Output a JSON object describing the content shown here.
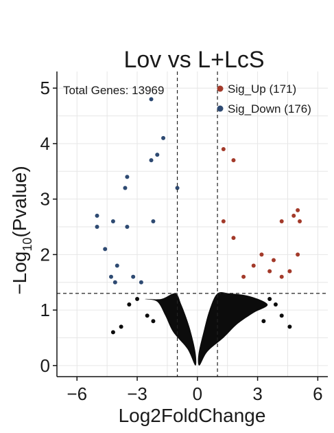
{
  "chart_data": {
    "type": "scatter",
    "title": "Lov vs L+LcS",
    "xlabel": "Log2FoldChange",
    "ylabel_prefix": "−Log",
    "ylabel_sub": "10",
    "ylabel_suffix": "(Pvalue)",
    "xlim": [
      -7,
      6.5
    ],
    "ylim": [
      -0.2,
      5.3
    ],
    "x_ticks": [
      -6,
      -3,
      0,
      3,
      6
    ],
    "x_tick_labels": [
      "−6",
      "−3",
      "0",
      "3",
      "6"
    ],
    "y_ticks": [
      0,
      1,
      2,
      3,
      4,
      5
    ],
    "y_tick_labels": [
      "0",
      "1",
      "2",
      "3",
      "4",
      "5"
    ],
    "grid": true,
    "thresholds": {
      "log2fc": [
        -1,
        1
      ],
      "neg_log10_p": 1.3
    },
    "annotation": "Total Genes: 13969",
    "legend_position": "top-right",
    "colors": {
      "up": "#a33a2a",
      "down": "#2e4a72",
      "ns": "#0c0c0c",
      "threshold_line": "#222222",
      "grid": "#e6e6e6"
    },
    "series": [
      {
        "name": "Sig_Up (171)",
        "key": "up",
        "points": [
          [
            1.3,
            3.9
          ],
          [
            1.8,
            3.7
          ],
          [
            1.3,
            2.6
          ],
          [
            1.8,
            2.3
          ],
          [
            3.2,
            2.0
          ],
          [
            3.8,
            1.9
          ],
          [
            4.2,
            1.6
          ],
          [
            4.6,
            1.7
          ],
          [
            5.0,
            2.0
          ],
          [
            4.8,
            2.7
          ],
          [
            5.0,
            2.8
          ],
          [
            5.1,
            2.6
          ],
          [
            4.2,
            2.6
          ],
          [
            2.8,
            1.8
          ],
          [
            2.3,
            1.6
          ],
          [
            3.6,
            1.7
          ]
        ]
      },
      {
        "name": "Sig_Down (176)",
        "key": "down",
        "points": [
          [
            -2.3,
            4.8
          ],
          [
            -1.7,
            4.1
          ],
          [
            -2.0,
            3.8
          ],
          [
            -2.3,
            3.7
          ],
          [
            -3.5,
            3.4
          ],
          [
            -3.6,
            3.2
          ],
          [
            -1.0,
            3.2
          ],
          [
            -5.0,
            2.7
          ],
          [
            -5.0,
            2.5
          ],
          [
            -4.2,
            2.6
          ],
          [
            -3.5,
            2.5
          ],
          [
            -2.2,
            2.6
          ],
          [
            -4.6,
            2.1
          ],
          [
            -4.0,
            1.8
          ],
          [
            -4.3,
            1.6
          ],
          [
            -4.1,
            1.5
          ],
          [
            -3.2,
            1.6
          ],
          [
            -2.8,
            1.5
          ]
        ]
      },
      {
        "name": "",
        "key": "ns",
        "points": [
          [
            -3.0,
            1.2
          ],
          [
            -3.4,
            1.1
          ],
          [
            -2.5,
            0.9
          ],
          [
            -3.8,
            0.7
          ],
          [
            -4.2,
            0.6
          ],
          [
            3.6,
            1.2
          ],
          [
            3.9,
            1.1
          ],
          [
            4.2,
            0.9
          ],
          [
            4.6,
            0.7
          ],
          [
            3.3,
            0.8
          ],
          [
            2.6,
            0.95
          ],
          [
            -2.2,
            0.8
          ]
        ]
      }
    ]
  }
}
